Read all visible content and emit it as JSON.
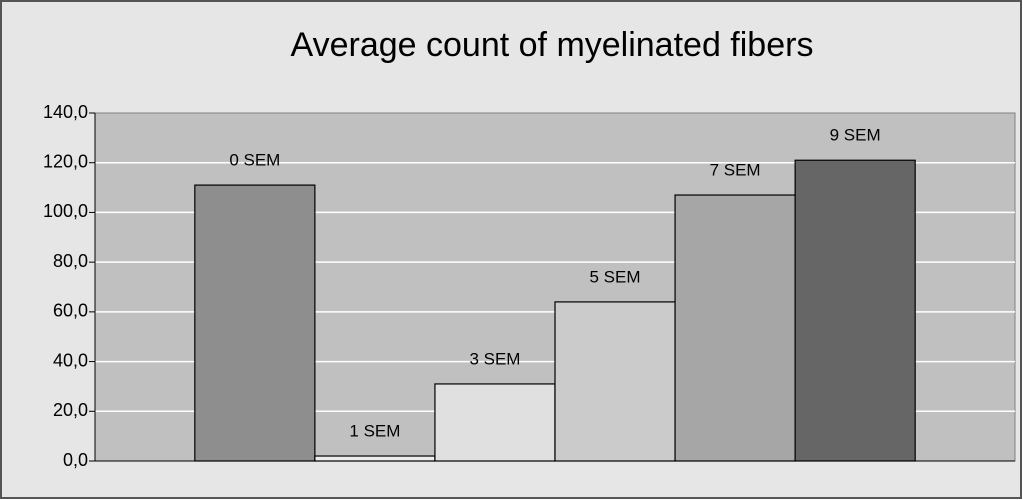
{
  "chart_data": {
    "type": "bar",
    "title": "Average count of myelinated fibers",
    "categories": [
      "0 SEM",
      "1 SEM",
      "3 SEM",
      "5 SEM",
      "7 SEM",
      "9 SEM"
    ],
    "values": [
      111,
      2,
      31,
      64,
      107,
      121
    ],
    "colors": [
      "#8e8e8e",
      "#ededed",
      "#e0e0e0",
      "#cbcbcb",
      "#a6a6a6",
      "#666666"
    ],
    "ylim": [
      0,
      140
    ],
    "yticks": [
      {
        "value": 0,
        "label": "0,0"
      },
      {
        "value": 20,
        "label": "20,0"
      },
      {
        "value": 40,
        "label": "40,0"
      },
      {
        "value": 60,
        "label": "60,0"
      },
      {
        "value": 80,
        "label": "80,0"
      },
      {
        "value": 100,
        "label": "100,0"
      },
      {
        "value": 120,
        "label": "120,0"
      },
      {
        "value": 140,
        "label": "140,0"
      }
    ],
    "grid": true
  }
}
